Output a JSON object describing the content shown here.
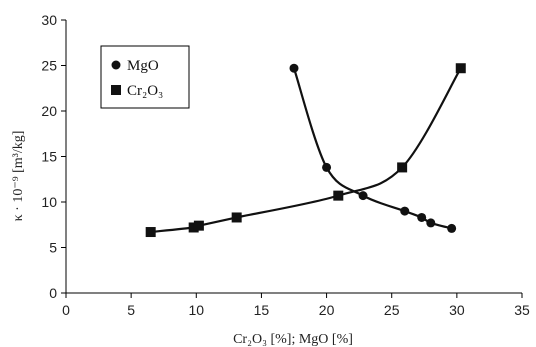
{
  "chart_data": {
    "type": "scatter",
    "xlabel": "Cr₂O₃ [%]; MgO [%]",
    "ylabel": "κ · 10⁻⁹ [m³/kg]",
    "xlim": [
      0,
      35
    ],
    "ylim": [
      0,
      30
    ],
    "xticks": [
      0,
      5,
      10,
      15,
      20,
      25,
      30,
      35
    ],
    "yticks": [
      0,
      5,
      10,
      15,
      20,
      25,
      30
    ],
    "grid": false,
    "legend_position": "top-left",
    "series": [
      {
        "name": "MgO",
        "marker": "circle",
        "x": [
          17.5,
          20.0,
          22.8,
          26.0,
          27.3,
          28.0,
          29.6
        ],
        "y": [
          24.7,
          13.8,
          10.7,
          9.0,
          8.3,
          7.7,
          7.1
        ]
      },
      {
        "name": "Cr₂O₃",
        "marker": "square",
        "x": [
          6.5,
          9.8,
          10.2,
          13.1,
          20.9,
          25.8,
          30.3
        ],
        "y": [
          6.7,
          7.2,
          7.4,
          8.3,
          10.7,
          13.8,
          24.7
        ]
      }
    ],
    "color": "#111111"
  }
}
